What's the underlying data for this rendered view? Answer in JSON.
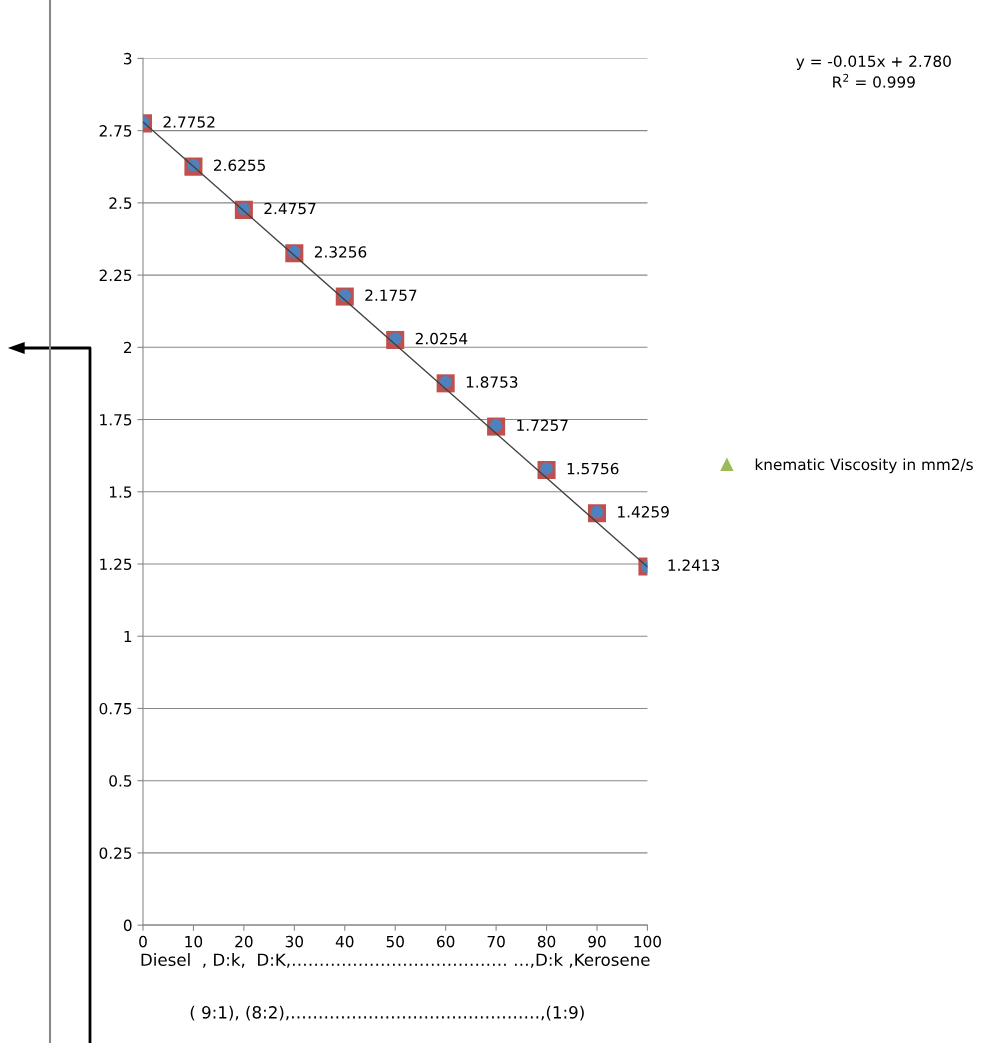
{
  "chart_data": {
    "type": "scatter",
    "x": [
      0,
      10,
      20,
      30,
      40,
      50,
      60,
      70,
      80,
      90,
      100
    ],
    "series": [
      {
        "color": "#c0504d",
        "marker": "square",
        "values": [
          2.7752,
          2.6255,
          2.4757,
          2.3256,
          2.1757,
          2.0254,
          1.8753,
          1.7257,
          1.5756,
          1.4259,
          1.2413
        ],
        "value_labels": [
          "2.7752",
          "2.6255",
          "2.4757",
          "2.3256",
          "2.1757",
          "2.0254",
          "1.8753",
          "1.7257",
          "1.5756",
          "1.4259",
          "1.2413"
        ]
      },
      {
        "color": "#4f81bd",
        "marker": "circle",
        "values": [
          2.78,
          2.63,
          2.48,
          2.33,
          2.18,
          2.03,
          1.88,
          1.73,
          1.58,
          1.43,
          1.24
        ]
      },
      {
        "name": "knematic Viscosity in mm2/s",
        "color": "#9bbb59",
        "marker": "triangle",
        "values": [
          null,
          null,
          null,
          null,
          null,
          null,
          null,
          null,
          null,
          null,
          null
        ]
      },
      {
        "type": "line",
        "color": "#404040",
        "marker": "none",
        "x": [
          0,
          100
        ],
        "values": [
          2.78,
          1.24
        ]
      }
    ],
    "xlim": [
      0,
      100
    ],
    "xticks": [
      0,
      10,
      20,
      30,
      40,
      50,
      60,
      70,
      80,
      90,
      100
    ],
    "ylim": [
      0,
      3
    ],
    "yticks": [
      0,
      0.25,
      0.5,
      0.75,
      1,
      1.25,
      1.5,
      1.75,
      2,
      2.25,
      2.5,
      2.75,
      3
    ],
    "grid": "y",
    "legend": "right",
    "xlabel": "Diesel  , D:k,  D:K,………………………………… …,D:k ,Kerosene",
    "annotations": [
      "( 9:1), (8:2),………………………………………,(1:9)",
      "y = -0.015x + 2.780",
      "R$^{2}$ = 0.999"
    ]
  }
}
